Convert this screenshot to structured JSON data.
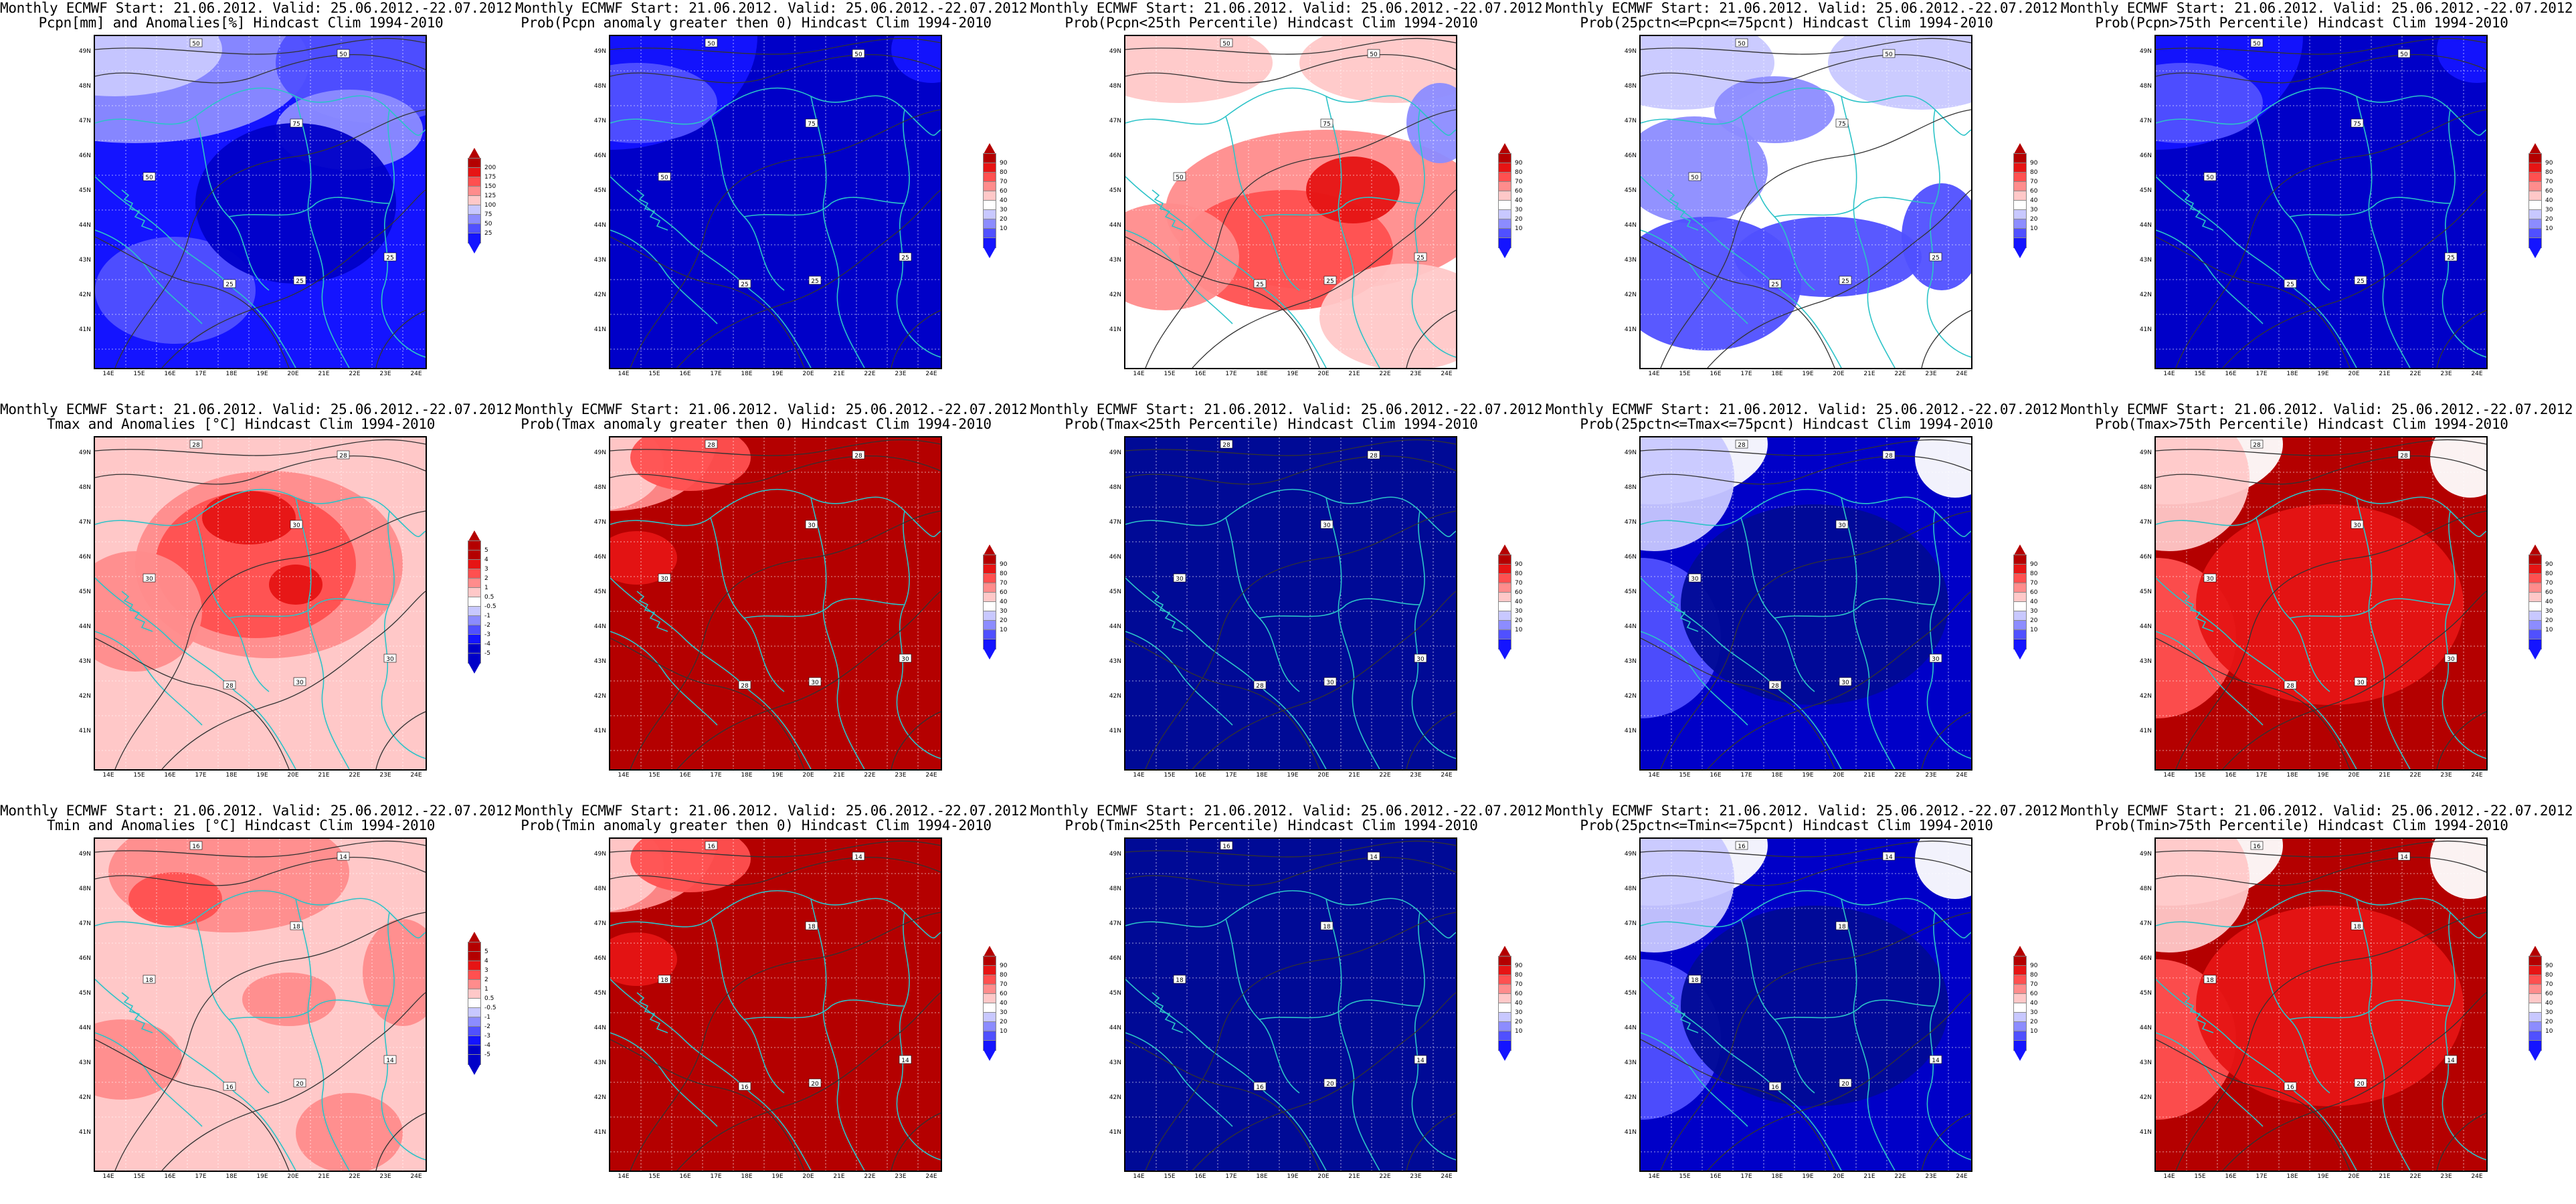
{
  "panels": [
    {
      "line1": "Monthly ECMWF Start: 21.06.2012. Valid: 25.06.2012.-22.07.2012.",
      "line2": "Pcpn[mm] and Anomalies[%] Hindcast Clim 1994-2010",
      "scheme": "precip",
      "contours": [
        "50",
        "50",
        "75",
        "50",
        "25",
        "25",
        "25"
      ]
    },
    {
      "line1": "Monthly ECMWF Start: 21.06.2012. Valid: 25.06.2012.-22.07.2012.",
      "line2": "Prob(Pcpn anomaly greater then 0) Hindcast Clim 1994-2010",
      "scheme": "blue",
      "contours": [
        "50",
        "50",
        "75",
        "50",
        "25",
        "25",
        "25"
      ]
    },
    {
      "line1": "Monthly ECMWF Start: 21.06.2012. Valid: 25.06.2012.-22.07.2012.",
      "line2": "Prob(Pcpn<25th Percentile) Hindcast Clim 1994-2010",
      "scheme": "mixred",
      "contours": [
        "50",
        "50",
        "75",
        "50",
        "25",
        "25",
        "25"
      ]
    },
    {
      "line1": "Monthly ECMWF Start: 21.06.2012. Valid: 25.06.2012.-22.07.2012.",
      "line2": "Prob(25pctn<=Pcpn<=75pcnt) Hindcast Clim 1994-2010",
      "scheme": "mixblue",
      "contours": [
        "50",
        "50",
        "75",
        "50",
        "25",
        "25",
        "25"
      ]
    },
    {
      "line1": "Monthly ECMWF Start: 21.06.2012. Valid: 25.06.2012.-22.07.2012.",
      "line2": "Prob(Pcpn>75th Percentile) Hindcast Clim 1994-2010",
      "scheme": "blue",
      "contours": [
        "50",
        "50",
        "75",
        "50",
        "25",
        "25",
        "25"
      ]
    },
    {
      "line1": "Monthly ECMWF Start: 21.06.2012. Valid: 25.06.2012.-22.07.2012.",
      "line2": "Tmax and Anomalies [°C] Hindcast Clim 1994-2010",
      "scheme": "temp",
      "contours": [
        "28",
        "28",
        "30",
        "30",
        "28",
        "30",
        "30"
      ]
    },
    {
      "line1": "Monthly ECMWF Start: 21.06.2012. Valid: 25.06.2012.-22.07.2012.",
      "line2": "Prob(Tmax anomaly greater then 0) Hindcast Clim 1994-2010",
      "scheme": "darkred",
      "contours": [
        "28",
        "28",
        "30",
        "30",
        "28",
        "30",
        "30"
      ]
    },
    {
      "line1": "Monthly ECMWF Start: 21.06.2012. Valid: 25.06.2012.-22.07.2012.",
      "line2": "Prob(Tmax<25th Percentile) Hindcast Clim 1994-2010",
      "scheme": "navy",
      "contours": [
        "28",
        "28",
        "30",
        "30",
        "28",
        "30",
        "30"
      ]
    },
    {
      "line1": "Monthly ECMWF Start: 21.06.2012. Valid: 25.06.2012.-22.07.2012.",
      "line2": "Prob(25pctn<=Tmax<=75pcnt) Hindcast Clim 1994-2010",
      "scheme": "bluering",
      "contours": [
        "28",
        "28",
        "30",
        "30",
        "28",
        "30",
        "30"
      ]
    },
    {
      "line1": "Monthly ECMWF Start: 21.06.2012. Valid: 25.06.2012.-22.07.2012.",
      "line2": "Prob(Tmax>75th Percentile) Hindcast Clim 1994-2010",
      "scheme": "redring",
      "contours": [
        "28",
        "28",
        "30",
        "30",
        "28",
        "30",
        "30"
      ]
    },
    {
      "line1": "Monthly ECMWF Start: 21.06.2012. Valid: 25.06.2012.-22.07.2012.",
      "line2": "Tmin and Anomalies [°C] Hindcast Clim 1994-2010",
      "scheme": "temp2",
      "contours": [
        "16",
        "14",
        "18",
        "18",
        "16",
        "14",
        "20"
      ]
    },
    {
      "line1": "Monthly ECMWF Start: 21.06.2012. Valid: 25.06.2012.-22.07.2012.",
      "line2": "Prob(Tmin anomaly greater then 0) Hindcast Clim 1994-2010",
      "scheme": "darkred",
      "contours": [
        "16",
        "14",
        "18",
        "18",
        "16",
        "14",
        "20"
      ]
    },
    {
      "line1": "Monthly ECMWF Start: 21.06.2012. Valid: 25.06.2012.-22.07.2012.",
      "line2": "Prob(Tmin<25th Percentile) Hindcast Clim 1994-2010",
      "scheme": "navy",
      "contours": [
        "16",
        "14",
        "18",
        "18",
        "16",
        "14",
        "20"
      ]
    },
    {
      "line1": "Monthly ECMWF Start: 21.06.2012. Valid: 25.06.2012.-22.07.2012.",
      "line2": "Prob(25pctn<=Tmin<=75pcnt) Hindcast Clim 1994-2010",
      "scheme": "bluering",
      "contours": [
        "16",
        "14",
        "18",
        "18",
        "16",
        "14",
        "20"
      ]
    },
    {
      "line1": "Monthly ECMWF Start: 21.06.2012. Valid: 25.06.2012.-22.07.2012.",
      "line2": "Prob(Tmin>75th Percentile) Hindcast Clim 1994-2010",
      "scheme": "redring",
      "contours": [
        "16",
        "14",
        "18",
        "18",
        "16",
        "14",
        "20"
      ]
    }
  ],
  "lat_labels": [
    "49N",
    "48N",
    "47N",
    "46N",
    "45N",
    "44N",
    "43N",
    "42N",
    "41N"
  ],
  "lon_labels": [
    "14E",
    "15E",
    "16E",
    "17E",
    "18E",
    "19E",
    "20E",
    "21E",
    "22E",
    "23E",
    "24E"
  ],
  "colorbars": {
    "precip": {
      "labels": [
        "200",
        "175",
        "150",
        "125",
        "100",
        "75",
        "50",
        "25"
      ]
    },
    "temp": {
      "labels": [
        "5",
        "4",
        "3",
        "2",
        "1",
        "0.5",
        "-0.5",
        "-1",
        "-2",
        "-3",
        "-4",
        "-5"
      ]
    },
    "prob": {
      "labels": [
        "90",
        "80",
        "70",
        "60",
        "40",
        "30",
        "20",
        "10"
      ]
    }
  },
  "palette": {
    "blue_levels": [
      "#0000c8",
      "#1414ff",
      "#5050ff",
      "#8c8cff",
      "#c8c8ff"
    ],
    "red_levels": [
      "#b40000",
      "#e61414",
      "#ff5050",
      "#ff8c8c",
      "#ffc8c8"
    ],
    "navy": "#000a96",
    "coast": "#2cc3c8",
    "contour": "#333333"
  }
}
